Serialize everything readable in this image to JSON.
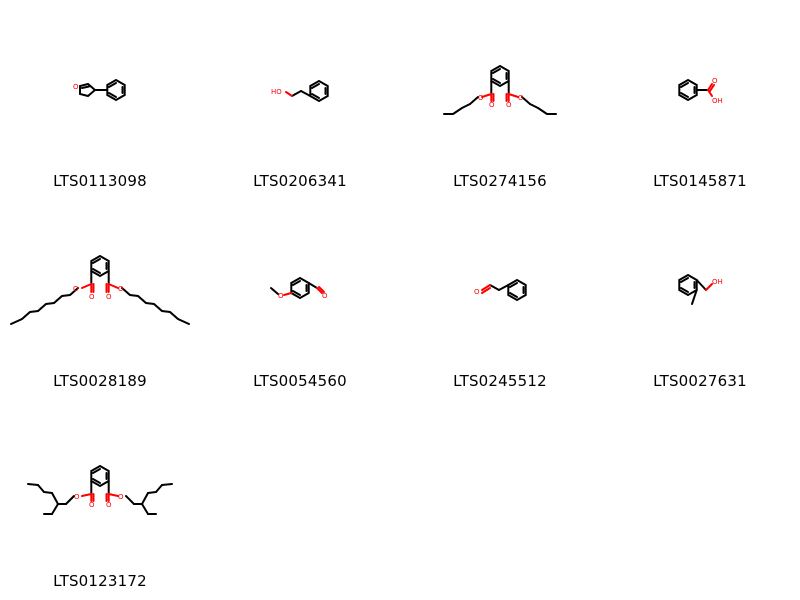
{
  "grid": {
    "columns": 4,
    "molecules": [
      {
        "id": "LTS0113098"
      },
      {
        "id": "LTS0206341"
      },
      {
        "id": "LTS0274156"
      },
      {
        "id": "LTS0145871"
      },
      {
        "id": "LTS0028189"
      },
      {
        "id": "LTS0054560"
      },
      {
        "id": "LTS0245512"
      },
      {
        "id": "LTS0027631"
      },
      {
        "id": "LTS0123172"
      }
    ]
  },
  "atoms": {
    "oxygen": "O",
    "hydroxyl": "OH",
    "hydroxyl_left": "HO"
  },
  "colors": {
    "bond": "#000000",
    "heteroatom": "#ff0000",
    "label": "#000000"
  }
}
